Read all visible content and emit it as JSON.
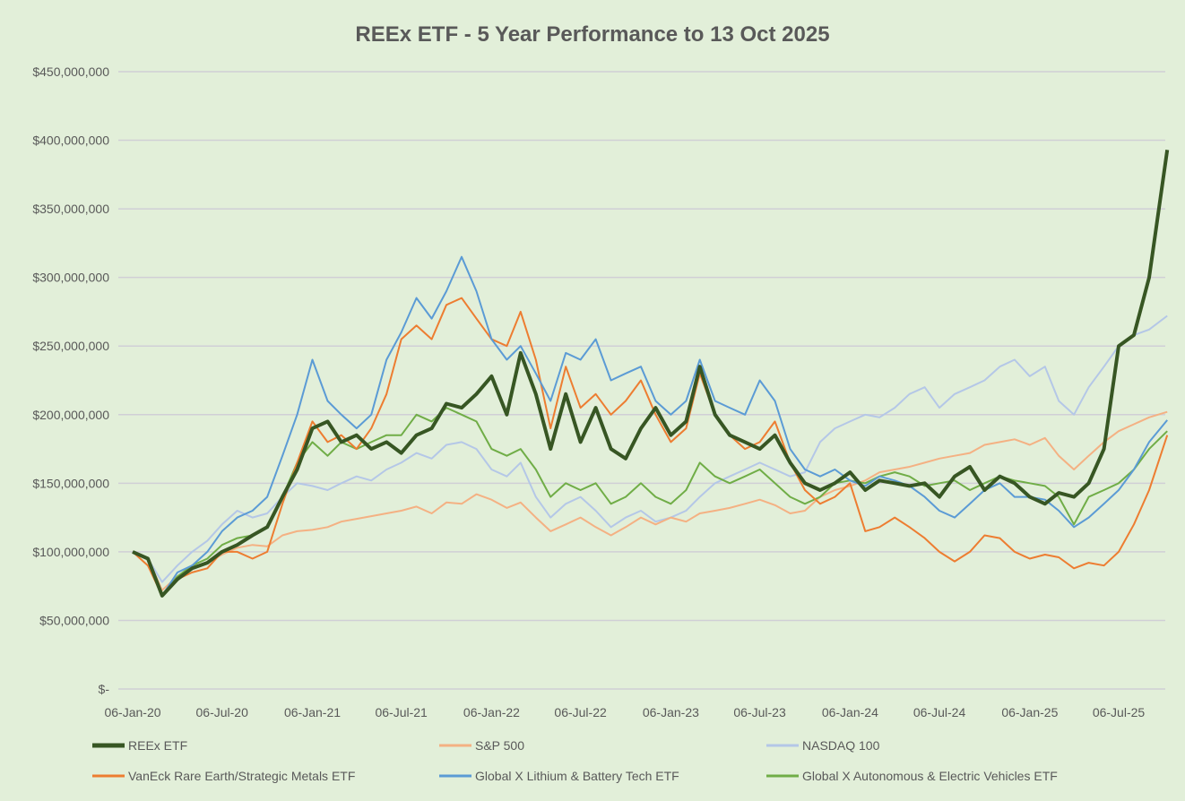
{
  "chart_data": {
    "type": "line",
    "title": "REEx ETF - 5 Year Performance to 13 Oct 2025",
    "xlabel": "",
    "ylabel": "",
    "ylim": [
      0,
      450000000
    ],
    "y_ticks": [
      0,
      50000000,
      100000000,
      150000000,
      200000000,
      250000000,
      300000000,
      350000000,
      400000000,
      450000000
    ],
    "y_tick_labels": [
      "$-",
      "$50,000,000",
      "$100,000,000",
      "$150,000,000",
      "$200,000,000",
      "$250,000,000",
      "$300,000,000",
      "$350,000,000",
      "$400,000,000",
      "$450,000,000"
    ],
    "x_ticks": [
      "2020-01-06",
      "2020-07-06",
      "2021-01-06",
      "2021-07-06",
      "2022-01-06",
      "2022-07-06",
      "2023-01-06",
      "2023-07-06",
      "2024-01-06",
      "2024-07-06",
      "2025-01-06",
      "2025-07-06"
    ],
    "x_tick_labels": [
      "06-Jan-20",
      "06-Jul-20",
      "06-Jan-21",
      "06-Jul-21",
      "06-Jan-22",
      "06-Jul-22",
      "06-Jan-23",
      "06-Jul-23",
      "06-Jan-24",
      "06-Jul-24",
      "06-Jan-25",
      "06-Jul-25"
    ],
    "grid": "horizontal",
    "legend": "bottom",
    "x_start": "2020-01-06",
    "x_end": "2025-10-13",
    "x_frequency": "monthly",
    "series": [
      {
        "name": "REEx ETF",
        "color": "#375623",
        "width": 4,
        "values": [
          100000000.0,
          95000000.0,
          68000000.0,
          80000000.0,
          88000000.0,
          92000000.0,
          100000000.0,
          105000000.0,
          112000000.0,
          118000000.0,
          140000000.0,
          160000000.0,
          190000000.0,
          195000000.0,
          180000000.0,
          185000000.0,
          175000000.0,
          180000000.0,
          172000000.0,
          185000000.0,
          190000000.0,
          208000000.0,
          205000000.0,
          215000000.0,
          228000000.0,
          200000000.0,
          245000000.0,
          215000000.0,
          175000000.0,
          215000000.0,
          180000000.0,
          205000000.0,
          175000000.0,
          168000000.0,
          190000000.0,
          205000000.0,
          185000000.0,
          195000000.0,
          235000000.0,
          200000000.0,
          185000000.0,
          180000000.0,
          175000000.0,
          185000000.0,
          165000000.0,
          150000000.0,
          145000000.0,
          150000000.0,
          158000000.0,
          145000000.0,
          152000000.0,
          150000000.0,
          148000000.0,
          150000000.0,
          140000000.0,
          155000000.0,
          162000000.0,
          145000000.0,
          155000000.0,
          150000000.0,
          140000000.0,
          135000000.0,
          143000000.0,
          140000000.0,
          150000000.0,
          175000000.0,
          250000000.0,
          258000000.0,
          300000000.0,
          393000000.0
        ]
      },
      {
        "name": "S&P 500",
        "color": "#f4b183",
        "width": 2,
        "values": [
          100000000.0,
          95000000.0,
          72000000.0,
          82000000.0,
          88000000.0,
          92000000.0,
          98000000.0,
          103000000.0,
          105000000.0,
          104000000.0,
          112000000.0,
          115000000.0,
          116000000.0,
          118000000.0,
          122000000.0,
          124000000.0,
          126000000.0,
          128000000.0,
          130000000.0,
          133000000.0,
          128000000.0,
          136000000.0,
          135000000.0,
          142000000.0,
          138000000.0,
          132000000.0,
          136000000.0,
          125000000.0,
          115000000.0,
          120000000.0,
          125000000.0,
          118000000.0,
          112000000.0,
          118000000.0,
          125000000.0,
          120000000.0,
          125000000.0,
          122000000.0,
          128000000.0,
          130000000.0,
          132000000.0,
          135000000.0,
          138000000.0,
          134000000.0,
          128000000.0,
          130000000.0,
          140000000.0,
          145000000.0,
          148000000.0,
          152000000.0,
          158000000.0,
          160000000.0,
          162000000.0,
          165000000.0,
          168000000.0,
          170000000.0,
          172000000.0,
          178000000.0,
          180000000.0,
          182000000.0,
          178000000.0,
          183000000.0,
          170000000.0,
          160000000.0,
          170000000.0,
          180000000.0,
          188000000.0,
          193000000.0,
          198000000.0,
          202000000.0
        ]
      },
      {
        "name": "NASDAQ 100",
        "color": "#b4c7e7",
        "width": 2,
        "values": [
          100000000.0,
          95000000.0,
          78000000.0,
          90000000.0,
          100000000.0,
          108000000.0,
          120000000.0,
          130000000.0,
          125000000.0,
          128000000.0,
          140000000.0,
          150000000.0,
          148000000.0,
          145000000.0,
          150000000.0,
          155000000.0,
          152000000.0,
          160000000.0,
          165000000.0,
          172000000.0,
          168000000.0,
          178000000.0,
          180000000.0,
          175000000.0,
          160000000.0,
          155000000.0,
          165000000.0,
          140000000.0,
          125000000.0,
          135000000.0,
          140000000.0,
          130000000.0,
          118000000.0,
          125000000.0,
          130000000.0,
          122000000.0,
          125000000.0,
          130000000.0,
          140000000.0,
          150000000.0,
          155000000.0,
          160000000.0,
          165000000.0,
          160000000.0,
          155000000.0,
          158000000.0,
          180000000.0,
          190000000.0,
          195000000.0,
          200000000.0,
          198000000.0,
          205000000.0,
          215000000.0,
          220000000.0,
          205000000.0,
          215000000.0,
          220000000.0,
          225000000.0,
          235000000.0,
          240000000.0,
          228000000.0,
          235000000.0,
          210000000.0,
          200000000.0,
          220000000.0,
          235000000.0,
          250000000.0,
          258000000.0,
          262000000.0,
          272000000.0
        ]
      },
      {
        "name": "VanEck Rare Earth/Strategic Metals ETF",
        "color": "#ed7d31",
        "width": 2,
        "values": [
          100000000.0,
          90000000.0,
          68000000.0,
          80000000.0,
          85000000.0,
          88000000.0,
          100000000.0,
          100000000.0,
          95000000.0,
          100000000.0,
          135000000.0,
          165000000.0,
          195000000.0,
          180000000.0,
          185000000.0,
          175000000.0,
          190000000.0,
          215000000.0,
          255000000.0,
          265000000.0,
          255000000.0,
          280000000.0,
          285000000.0,
          270000000.0,
          255000000.0,
          250000000.0,
          275000000.0,
          240000000.0,
          190000000.0,
          235000000.0,
          205000000.0,
          215000000.0,
          200000000.0,
          210000000.0,
          225000000.0,
          200000000.0,
          180000000.0,
          190000000.0,
          230000000.0,
          200000000.0,
          185000000.0,
          175000000.0,
          180000000.0,
          195000000.0,
          165000000.0,
          145000000.0,
          135000000.0,
          140000000.0,
          150000000.0,
          115000000.0,
          118000000.0,
          125000000.0,
          118000000.0,
          110000000.0,
          100000000.0,
          93000000.0,
          100000000.0,
          112000000.0,
          110000000.0,
          100000000.0,
          95000000.0,
          98000000.0,
          96000000.0,
          88000000.0,
          92000000.0,
          90000000.0,
          100000000.0,
          120000000.0,
          145000000.0,
          185000000.0
        ]
      },
      {
        "name": "Global X Lithium & Battery Tech ETF",
        "color": "#5b9bd5",
        "width": 2,
        "values": [
          100000000.0,
          95000000.0,
          68000000.0,
          85000000.0,
          90000000.0,
          100000000.0,
          115000000.0,
          125000000.0,
          130000000.0,
          140000000.0,
          170000000.0,
          200000000.0,
          240000000.0,
          210000000.0,
          200000000.0,
          190000000.0,
          200000000.0,
          240000000.0,
          260000000.0,
          285000000.0,
          270000000.0,
          290000000.0,
          315000000.0,
          290000000.0,
          255000000.0,
          240000000.0,
          250000000.0,
          230000000.0,
          210000000.0,
          245000000.0,
          240000000.0,
          255000000.0,
          225000000.0,
          230000000.0,
          235000000.0,
          210000000.0,
          200000000.0,
          210000000.0,
          240000000.0,
          210000000.0,
          205000000.0,
          200000000.0,
          225000000.0,
          210000000.0,
          175000000.0,
          160000000.0,
          155000000.0,
          160000000.0,
          152000000.0,
          148000000.0,
          155000000.0,
          152000000.0,
          148000000.0,
          140000000.0,
          130000000.0,
          125000000.0,
          135000000.0,
          145000000.0,
          150000000.0,
          140000000.0,
          140000000.0,
          138000000.0,
          130000000.0,
          118000000.0,
          125000000.0,
          135000000.0,
          145000000.0,
          160000000.0,
          180000000.0,
          196000000.0
        ]
      },
      {
        "name": "Global X Autonomous & Electric Vehicles ETF",
        "color": "#70ad47",
        "width": 2,
        "values": [
          100000000.0,
          95000000.0,
          68000000.0,
          82000000.0,
          90000000.0,
          95000000.0,
          105000000.0,
          110000000.0,
          112000000.0,
          118000000.0,
          140000000.0,
          165000000.0,
          180000000.0,
          170000000.0,
          180000000.0,
          175000000.0,
          180000000.0,
          185000000.0,
          185000000.0,
          200000000.0,
          195000000.0,
          205000000.0,
          200000000.0,
          195000000.0,
          175000000.0,
          170000000.0,
          175000000.0,
          160000000.0,
          140000000.0,
          150000000.0,
          145000000.0,
          150000000.0,
          135000000.0,
          140000000.0,
          150000000.0,
          140000000.0,
          135000000.0,
          145000000.0,
          165000000.0,
          155000000.0,
          150000000.0,
          155000000.0,
          160000000.0,
          150000000.0,
          140000000.0,
          135000000.0,
          140000000.0,
          150000000.0,
          152000000.0,
          150000000.0,
          155000000.0,
          158000000.0,
          155000000.0,
          148000000.0,
          150000000.0,
          152000000.0,
          145000000.0,
          150000000.0,
          155000000.0,
          152000000.0,
          150000000.0,
          148000000.0,
          140000000.0,
          120000000.0,
          140000000.0,
          145000000.0,
          150000000.0,
          160000000.0,
          175000000.0,
          188000000.0
        ]
      }
    ]
  }
}
